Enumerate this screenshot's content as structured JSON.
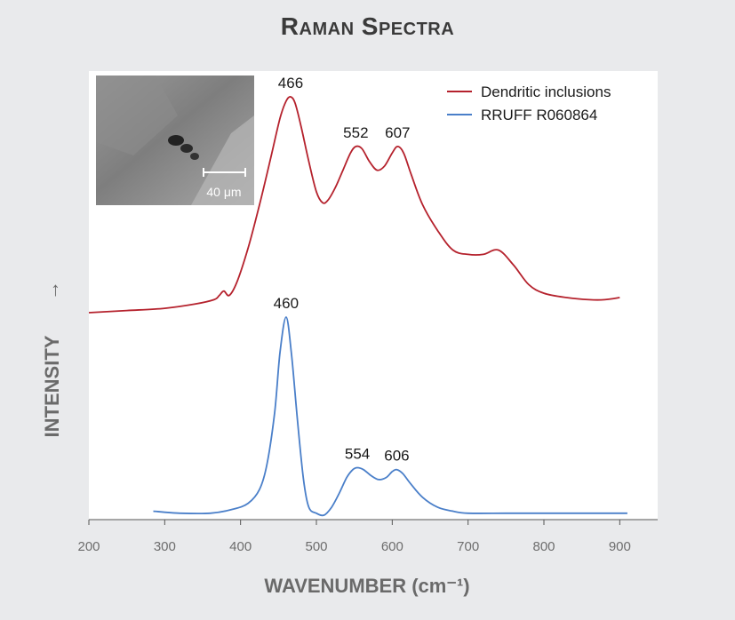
{
  "chart_data": {
    "type": "line",
    "title": "Raman Spectra",
    "xlabel": "WAVENUMBER (cm⁻¹)",
    "ylabel": "INTENSITY",
    "ylabel_arrow": "→",
    "xlim": [
      200,
      950
    ],
    "xticks": [
      200,
      300,
      400,
      500,
      600,
      700,
      800,
      900
    ],
    "grid": false,
    "legend_position": "top-right",
    "series": [
      {
        "name": "Dendritic inclusions",
        "color": "#b5222d",
        "x": [
          200,
          250,
          300,
          340,
          365,
          372,
          378,
          385,
          395,
          410,
          425,
          440,
          452,
          460,
          466,
          472,
          480,
          490,
          500,
          508,
          515,
          525,
          535,
          545,
          552,
          560,
          570,
          580,
          590,
          600,
          607,
          615,
          625,
          640,
          660,
          680,
          700,
          720,
          740,
          760,
          780,
          800,
          830,
          860,
          880,
          900
        ],
        "y": [
          0.0,
          0.01,
          0.02,
          0.04,
          0.06,
          0.08,
          0.1,
          0.08,
          0.14,
          0.3,
          0.5,
          0.72,
          0.9,
          0.98,
          1.0,
          0.97,
          0.86,
          0.7,
          0.56,
          0.51,
          0.52,
          0.58,
          0.66,
          0.74,
          0.77,
          0.76,
          0.7,
          0.66,
          0.68,
          0.74,
          0.77,
          0.74,
          0.64,
          0.5,
          0.38,
          0.29,
          0.27,
          0.27,
          0.29,
          0.22,
          0.13,
          0.09,
          0.07,
          0.06,
          0.06,
          0.07
        ],
        "peaks": [
          466,
          552,
          607
        ]
      },
      {
        "name": "RRUFF R060864",
        "color": "#4a7fc9",
        "x": [
          285,
          320,
          360,
          390,
          410,
          425,
          435,
          445,
          452,
          460,
          467,
          475,
          483,
          490,
          500,
          510,
          520,
          530,
          540,
          548,
          554,
          562,
          572,
          582,
          592,
          600,
          606,
          614,
          624,
          640,
          660,
          680,
          700,
          750,
          800,
          850,
          910
        ],
        "y": [
          0.02,
          0.01,
          0.01,
          0.03,
          0.06,
          0.13,
          0.26,
          0.52,
          0.82,
          1.0,
          0.82,
          0.48,
          0.18,
          0.04,
          0.01,
          0.0,
          0.04,
          0.11,
          0.19,
          0.23,
          0.24,
          0.23,
          0.2,
          0.18,
          0.19,
          0.22,
          0.23,
          0.21,
          0.16,
          0.09,
          0.04,
          0.02,
          0.01,
          0.01,
          0.01,
          0.01,
          0.01
        ],
        "peaks": [
          460,
          554,
          606
        ]
      }
    ],
    "inset": {
      "scale_bar_label": "40 μm"
    }
  }
}
